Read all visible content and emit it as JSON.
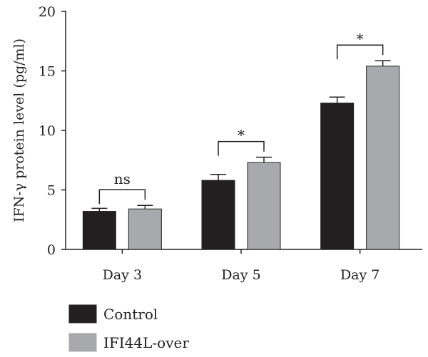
{
  "chart_data": {
    "type": "bar",
    "title": "",
    "xlabel": "",
    "ylabel": "IFN-γ protein level (pg/ml)",
    "ylim": [
      0,
      20
    ],
    "yticks": [
      0,
      5,
      10,
      15,
      20
    ],
    "categories": [
      "Day 3",
      "Day 5",
      "Day 7"
    ],
    "series": [
      {
        "name": "Control",
        "color": "#231f20",
        "values": [
          3.2,
          5.8,
          12.3
        ],
        "errors": [
          0.25,
          0.5,
          0.5
        ]
      },
      {
        "name": "IFI44L-over",
        "color": "#a7a9ac",
        "values": [
          3.4,
          7.3,
          15.4
        ],
        "errors": [
          0.3,
          0.45,
          0.45
        ]
      }
    ],
    "significance": [
      "ns",
      "*",
      "*"
    ],
    "legend": {
      "placement": "bottom-left"
    },
    "grid": false
  }
}
